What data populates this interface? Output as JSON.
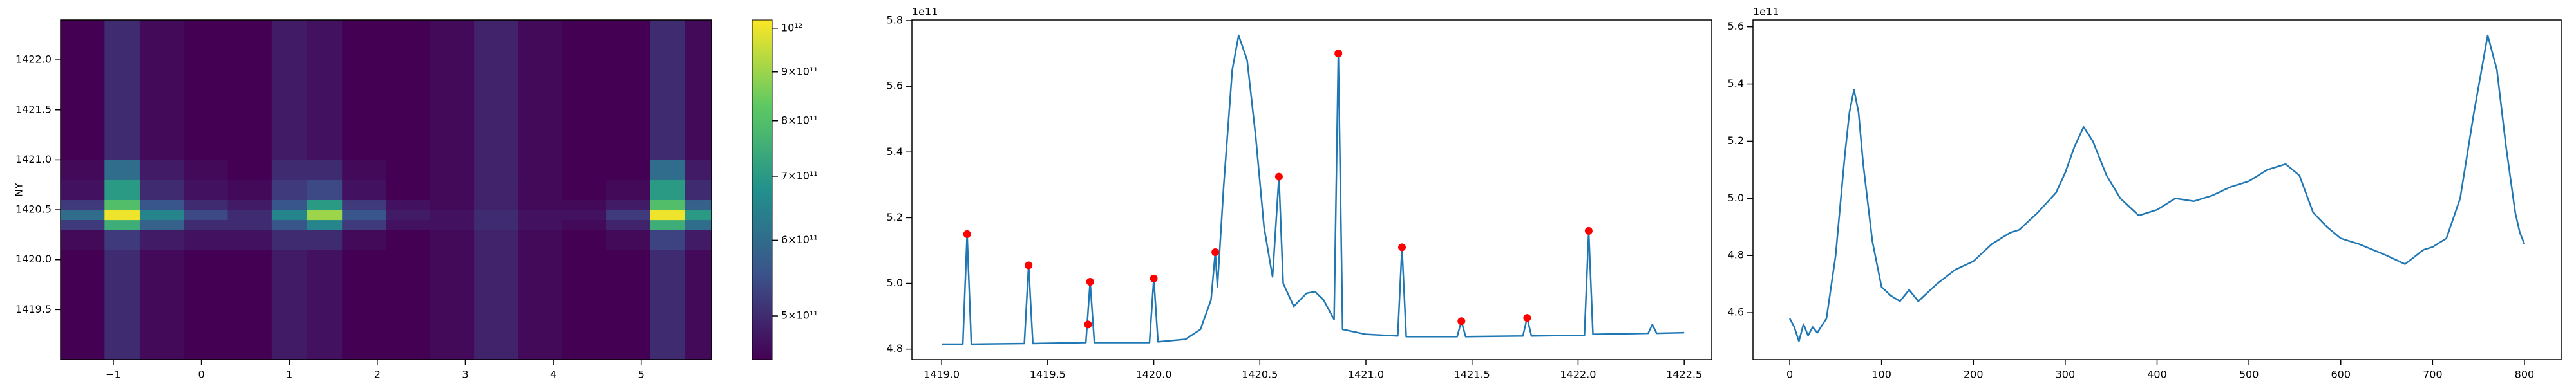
{
  "chart_data": [
    {
      "type": "heatmap",
      "ylabel": "NY",
      "x": [
        -1.6,
        -1.1,
        -0.7,
        -0.2,
        0.3,
        0.8,
        1.2,
        1.6,
        2.1,
        2.6,
        3.1,
        3.6,
        4.1,
        4.6,
        5.1,
        5.5,
        5.8
      ],
      "y": [
        1419.0,
        1419.4,
        1419.8,
        1420.1,
        1420.3,
        1420.4,
        1420.5,
        1420.6,
        1420.8,
        1421.0,
        1421.4,
        1421.8,
        1422.4
      ],
      "z": [
        [
          450000000000.0,
          500000000000.0,
          460000000000.0,
          450000000000.0,
          450000000000.0,
          480000000000.0,
          470000000000.0,
          450000000000.0,
          450000000000.0,
          460000000000.0,
          490000000000.0,
          460000000000.0,
          450000000000.0,
          450000000000.0,
          500000000000.0,
          460000000000.0
        ],
        [
          450000000000.0,
          500000000000.0,
          460000000000.0,
          450000000000.0,
          450000000000.0,
          480000000000.0,
          470000000000.0,
          450000000000.0,
          450000000000.0,
          460000000000.0,
          490000000000.0,
          460000000000.0,
          450000000000.0,
          450000000000.0,
          500000000000.0,
          460000000000.0
        ],
        [
          450000000000.0,
          500000000000.0,
          460000000000.0,
          450000000000.0,
          450000000000.0,
          480000000000.0,
          470000000000.0,
          450000000000.0,
          450000000000.0,
          460000000000.0,
          490000000000.0,
          460000000000.0,
          450000000000.0,
          450000000000.0,
          500000000000.0,
          460000000000.0
        ],
        [
          460000000000.0,
          520000000000.0,
          480000000000.0,
          470000000000.0,
          470000000000.0,
          500000000000.0,
          500000000000.0,
          460000000000.0,
          450000000000.0,
          460000000000.0,
          490000000000.0,
          460000000000.0,
          450000000000.0,
          460000000000.0,
          530000000000.0,
          480000000000.0
        ],
        [
          520000000000.0,
          750000000000.0,
          580000000000.0,
          500000000000.0,
          500000000000.0,
          560000000000.0,
          650000000000.0,
          520000000000.0,
          470000000000.0,
          470000000000.0,
          500000000000.0,
          470000000000.0,
          460000000000.0,
          490000000000.0,
          750000000000.0,
          600000000000.0
        ],
        [
          600000000000.0,
          1000000000000.0,
          650000000000.0,
          540000000000.0,
          500000000000.0,
          650000000000.0,
          900000000000.0,
          560000000000.0,
          480000000000.0,
          470000000000.0,
          500000000000.0,
          470000000000.0,
          470000000000.0,
          520000000000.0,
          1000000000000.0,
          700000000000.0
        ],
        [
          520000000000.0,
          800000000000.0,
          560000000000.0,
          500000000000.0,
          480000000000.0,
          560000000000.0,
          700000000000.0,
          520000000000.0,
          470000000000.0,
          460000000000.0,
          490000000000.0,
          460000000000.0,
          460000000000.0,
          480000000000.0,
          800000000000.0,
          580000000000.0
        ],
        [
          470000000000.0,
          700000000000.0,
          500000000000.0,
          470000000000.0,
          460000000000.0,
          520000000000.0,
          540000000000.0,
          470000000000.0,
          450000000000.0,
          460000000000.0,
          490000000000.0,
          460000000000.0,
          450000000000.0,
          460000000000.0,
          700000000000.0,
          500000000000.0
        ],
        [
          460000000000.0,
          600000000000.0,
          480000000000.0,
          460000000000.0,
          450000000000.0,
          500000000000.0,
          500000000000.0,
          460000000000.0,
          450000000000.0,
          460000000000.0,
          490000000000.0,
          460000000000.0,
          450000000000.0,
          450000000000.0,
          600000000000.0,
          480000000000.0
        ],
        [
          450000000000.0,
          500000000000.0,
          460000000000.0,
          450000000000.0,
          450000000000.0,
          480000000000.0,
          470000000000.0,
          450000000000.0,
          450000000000.0,
          460000000000.0,
          490000000000.0,
          460000000000.0,
          450000000000.0,
          450000000000.0,
          500000000000.0,
          460000000000.0
        ],
        [
          450000000000.0,
          500000000000.0,
          460000000000.0,
          450000000000.0,
          450000000000.0,
          480000000000.0,
          470000000000.0,
          450000000000.0,
          450000000000.0,
          460000000000.0,
          490000000000.0,
          460000000000.0,
          450000000000.0,
          450000000000.0,
          500000000000.0,
          460000000000.0
        ],
        [
          450000000000.0,
          500000000000.0,
          460000000000.0,
          450000000000.0,
          450000000000.0,
          480000000000.0,
          470000000000.0,
          450000000000.0,
          450000000000.0,
          460000000000.0,
          490000000000.0,
          460000000000.0,
          450000000000.0,
          450000000000.0,
          500000000000.0,
          460000000000.0
        ]
      ],
      "xlim": [
        -1.6,
        5.8
      ],
      "ylim": [
        1419.0,
        1422.4
      ],
      "xticks": [
        {
          "value": -1,
          "label": "−1"
        },
        0,
        1,
        2,
        3,
        4,
        5
      ],
      "yticks": [
        1419.5,
        {
          "value": 1420,
          "label": "1420.0"
        },
        1420.5,
        {
          "value": 1421,
          "label": "1421.0"
        },
        1421.5,
        {
          "value": 1422,
          "label": "1422.0"
        }
      ],
      "clim": [
        450000000000.0,
        1020000000000.0
      ],
      "clog": true,
      "cmap": "viridis",
      "cticks": [
        {
          "value": 500000000000.0,
          "label": "5×10¹¹"
        },
        {
          "value": 600000000000.0,
          "label": "6×10¹¹"
        },
        {
          "value": 700000000000.0,
          "label": "7×10¹¹"
        },
        {
          "value": 800000000000.0,
          "label": "8×10¹¹"
        },
        {
          "value": 900000000000.0,
          "label": "9×10¹¹"
        },
        {
          "value": 1000000000000.0,
          "label": "10¹²"
        }
      ]
    },
    {
      "type": "line",
      "offset_label": "1e11",
      "series": [
        {
          "color": "#1f77b4",
          "x": [
            1419.0,
            1419.1,
            1419.12,
            1419.14,
            1419.39,
            1419.41,
            1419.43,
            1419.68,
            1419.7,
            1419.72,
            1419.98,
            1420.0,
            1420.02,
            1420.15,
            1420.22,
            1420.27,
            1420.29,
            1420.3,
            1420.33,
            1420.37,
            1420.4,
            1420.44,
            1420.48,
            1420.52,
            1420.56,
            1420.59,
            1420.61,
            1420.66,
            1420.72,
            1420.76,
            1420.8,
            1420.85,
            1420.87,
            1420.89,
            1421.0,
            1421.15,
            1421.17,
            1421.19,
            1421.43,
            1421.45,
            1421.47,
            1421.74,
            1421.76,
            1421.78,
            1422.03,
            1422.05,
            1422.07,
            1422.33,
            1422.35,
            1422.37,
            1422.5
          ],
          "values": [
            4.815,
            4.815,
            5.15,
            4.815,
            4.817,
            5.055,
            4.817,
            4.82,
            5.005,
            4.82,
            4.82,
            5.015,
            4.822,
            4.83,
            4.86,
            4.95,
            5.095,
            4.99,
            5.3,
            5.65,
            5.755,
            5.68,
            5.45,
            5.17,
            5.02,
            5.325,
            5.0,
            4.93,
            4.97,
            4.975,
            4.95,
            4.89,
            5.7,
            4.86,
            4.845,
            4.84,
            5.11,
            4.838,
            4.838,
            4.885,
            4.838,
            4.84,
            4.895,
            4.84,
            4.842,
            5.16,
            4.845,
            4.848,
            4.875,
            4.848,
            4.85
          ]
        },
        {
          "type": "scatter",
          "color": "red",
          "x": [
            1419.12,
            1419.41,
            1419.7,
            1419.69,
            1420.0,
            1420.29,
            1420.59,
            1420.87,
            1421.17,
            1421.45,
            1421.76,
            1422.05
          ],
          "values": [
            5.15,
            5.055,
            5.005,
            4.875,
            5.015,
            5.095,
            5.325,
            5.7,
            5.11,
            4.885,
            4.895,
            5.16
          ]
        }
      ],
      "xlim": [
        1418.86,
        1422.63
      ],
      "ylim": [
        4.768,
        5.802
      ],
      "xticks": [
        {
          "value": 1419,
          "label": "1419.0"
        },
        1419.5,
        {
          "value": 1420,
          "label": "1420.0"
        },
        1420.5,
        {
          "value": 1421,
          "label": "1421.0"
        },
        1421.5,
        {
          "value": 1422,
          "label": "1422.0"
        },
        1422.5
      ],
      "yticks": [
        4.8,
        {
          "value": 5,
          "label": "5.0"
        },
        5.2,
        5.4,
        5.6,
        5.8
      ]
    },
    {
      "type": "line",
      "offset_label": "1e11",
      "series": [
        {
          "color": "#1f77b4",
          "x": [
            0,
            5,
            10,
            15,
            20,
            25,
            30,
            40,
            50,
            60,
            65,
            70,
            75,
            80,
            90,
            100,
            110,
            120,
            130,
            140,
            160,
            180,
            200,
            220,
            240,
            250,
            270,
            290,
            300,
            310,
            320,
            330,
            345,
            360,
            380,
            400,
            420,
            440,
            460,
            480,
            500,
            520,
            540,
            555,
            570,
            585,
            600,
            620,
            650,
            670,
            690,
            700,
            715,
            730,
            745,
            760,
            770,
            780,
            790,
            795,
            800
          ],
          "values": [
            4.58,
            4.55,
            4.5,
            4.56,
            4.52,
            4.55,
            4.53,
            4.58,
            4.8,
            5.15,
            5.3,
            5.38,
            5.3,
            5.12,
            4.85,
            4.69,
            4.66,
            4.64,
            4.68,
            4.64,
            4.7,
            4.75,
            4.78,
            4.84,
            4.88,
            4.89,
            4.95,
            5.02,
            5.09,
            5.18,
            5.25,
            5.2,
            5.08,
            5.0,
            4.94,
            4.96,
            5.0,
            4.99,
            5.01,
            5.04,
            5.06,
            5.1,
            5.12,
            5.08,
            4.95,
            4.9,
            4.86,
            4.84,
            4.8,
            4.77,
            4.82,
            4.83,
            4.86,
            5.0,
            5.3,
            5.57,
            5.45,
            5.18,
            4.95,
            4.88,
            4.84
          ]
        }
      ],
      "xlim": [
        -40,
        840
      ],
      "ylim": [
        4.436,
        5.624
      ],
      "xticks": [
        0,
        100,
        200,
        300,
        400,
        500,
        600,
        700,
        800
      ],
      "yticks": [
        4.6,
        4.8,
        {
          "value": 5,
          "label": "5.0"
        },
        5.2,
        5.4,
        5.6
      ]
    }
  ]
}
